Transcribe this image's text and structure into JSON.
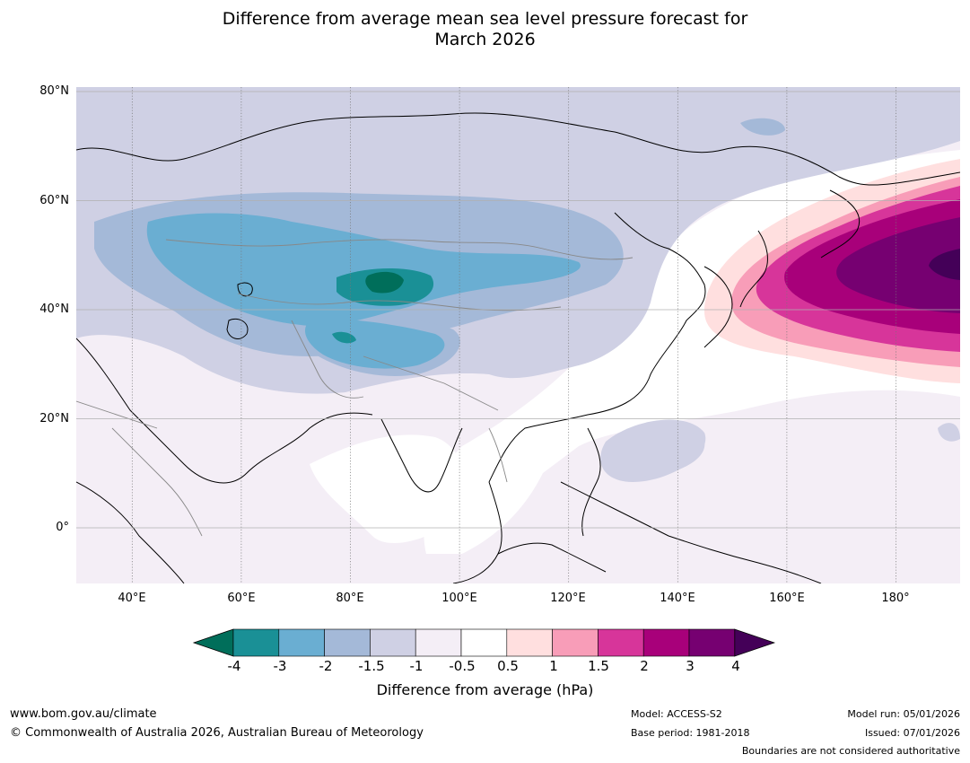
{
  "title": {
    "line1": "Difference from average mean sea level pressure forecast for",
    "line2": "March 2026"
  },
  "map": {
    "lat_labels": [
      "80°N",
      "60°N",
      "40°N",
      "20°N",
      "0°"
    ],
    "lon_labels": [
      "40°E",
      "60°E",
      "80°E",
      "100°E",
      "120°E",
      "140°E",
      "160°E",
      "180°"
    ],
    "lon_extent": [
      30,
      192
    ],
    "lat_extent": [
      -10,
      81
    ]
  },
  "colorbar": {
    "title": "Difference from average (hPa)",
    "labels": [
      "-4",
      "-3",
      "-2",
      "-1.5",
      "-1",
      "-0.5",
      "0.5",
      "1",
      "1.5",
      "2",
      "3",
      "4"
    ],
    "colors": [
      "#006e5a",
      "#1a9096",
      "#6aaed2",
      "#a4b9d8",
      "#cfd0e4",
      "#f4eef6",
      "#ffffff",
      "#ffdfdf",
      "#f89db8",
      "#d7359a",
      "#a8007a",
      "#760071",
      "#440058"
    ]
  },
  "footer": {
    "url": "www.bom.gov.au/climate",
    "copyright": "© Commonwealth of Australia 2026, Australian Bureau of Meteorology",
    "model": "Model: ACCESS-S2",
    "base_period": "Base period: 1981-2018",
    "model_run": "Model run: 05/01/2026",
    "issued": "Issued: 07/01/2026",
    "disclaimer": "Boundaries are not considered authoritative"
  }
}
